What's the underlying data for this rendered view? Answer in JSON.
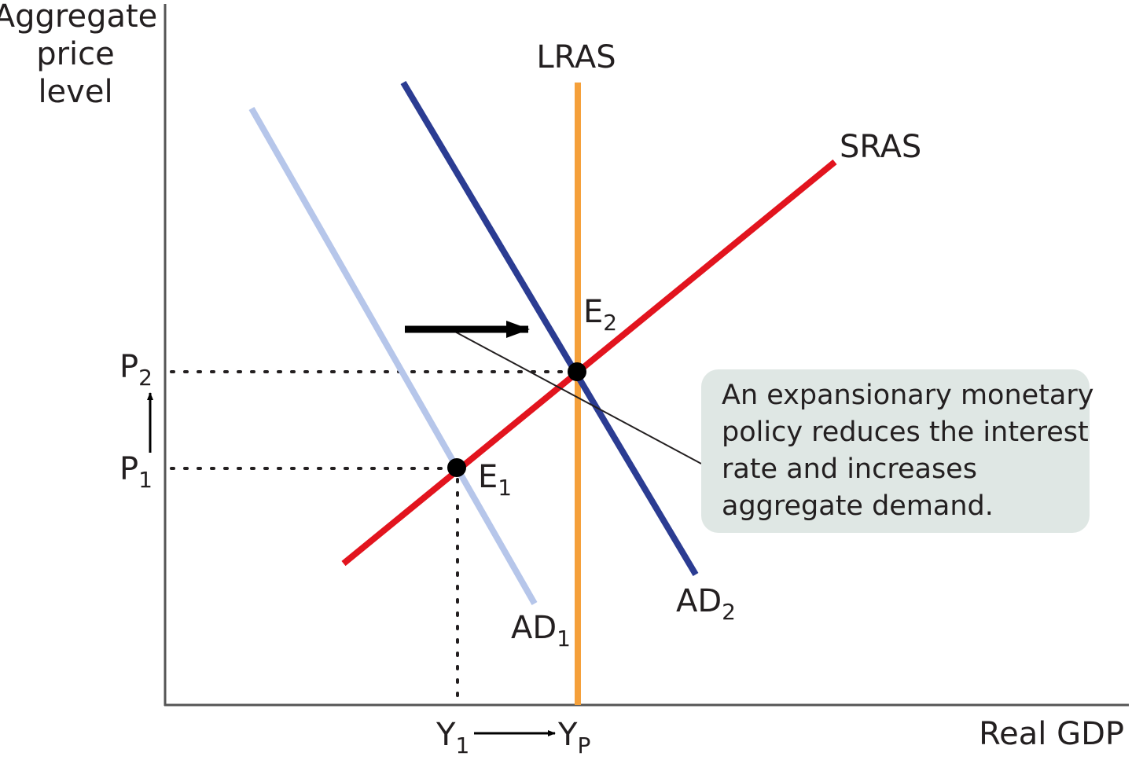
{
  "axes": {
    "y_label": [
      "Aggregate",
      "price",
      "level"
    ],
    "x_label": "Real GDP"
  },
  "curves": {
    "lras": "LRAS",
    "sras": "SRAS",
    "ad1": {
      "main": "AD",
      "sub": "1"
    },
    "ad2": {
      "main": "AD",
      "sub": "2"
    }
  },
  "points": {
    "e1": {
      "main": "E",
      "sub": "1"
    },
    "e2": {
      "main": "E",
      "sub": "2"
    }
  },
  "price_levels": {
    "p1": {
      "main": "P",
      "sub": "1"
    },
    "p2": {
      "main": "P",
      "sub": "2"
    }
  },
  "output_levels": {
    "y1": {
      "main": "Y",
      "sub": "1"
    },
    "yp": {
      "main": "Y",
      "sub": "P"
    }
  },
  "annotation": [
    "An expansionary monetary",
    "policy reduces the interest",
    "rate and increases",
    "aggregate demand."
  ]
}
